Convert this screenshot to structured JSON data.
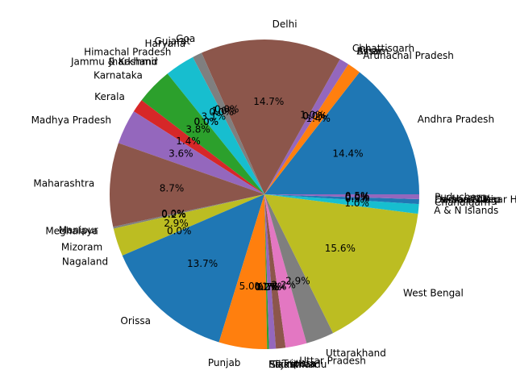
{
  "chart_data": {
    "type": "pie",
    "title": "",
    "start_angle_deg": 0,
    "direction": "counterclockwise",
    "autopct_format": "%.1f%%",
    "palette": [
      "#1f77b4",
      "#ff7f0e",
      "#2ca02c",
      "#d62728",
      "#9467bd",
      "#8c564b",
      "#e377c2",
      "#7f7f7f",
      "#bcbd22",
      "#17becf"
    ],
    "slices": [
      {
        "label": "Andhra Pradesh",
        "value": 14.4
      },
      {
        "label": "Arunachal Pradesh",
        "value": 1.4
      },
      {
        "label": "Assam",
        "value": 0.0
      },
      {
        "label": "Bihar",
        "value": 0.0
      },
      {
        "label": "Chhattisgarh",
        "value": 1.0
      },
      {
        "label": "Delhi",
        "value": 14.7
      },
      {
        "label": "Goa",
        "value": 0.0
      },
      {
        "label": "Gujarat",
        "value": 1.0
      },
      {
        "label": "Haryana",
        "value": 0.0
      },
      {
        "label": "Himachal Pradesh",
        "value": 3.1
      },
      {
        "label": "Jammu & Kashmir",
        "value": 0.0
      },
      {
        "label": "Jharkhand",
        "value": 0.0
      },
      {
        "label": "Karnataka",
        "value": 3.8
      },
      {
        "label": "Kerala",
        "value": 1.4
      },
      {
        "label": "Madhya Pradesh",
        "value": 3.6
      },
      {
        "label": "Maharashtra",
        "value": 8.7
      },
      {
        "label": "Manipur",
        "value": 0.0
      },
      {
        "label": "Meghalaya",
        "value": 0.2
      },
      {
        "label": "Mizoram",
        "value": 2.9
      },
      {
        "label": "Nagaland",
        "value": 0.0
      },
      {
        "label": "Orissa",
        "value": 13.7
      },
      {
        "label": "Punjab",
        "value": 5.0
      },
      {
        "label": "Rajasthan",
        "value": 0.2
      },
      {
        "label": "Sikkim",
        "value": 0.0
      },
      {
        "label": "Tamil Nadu",
        "value": 0.7
      },
      {
        "label": "Tripura",
        "value": 1.0
      },
      {
        "label": "Uttar Pradesh",
        "value": 2.2
      },
      {
        "label": "Uttarakhand",
        "value": 2.9
      },
      {
        "label": "West Bengal",
        "value": 15.6
      },
      {
        "label": "A & N Islands",
        "value": 1.0
      },
      {
        "label": "Chandigarh",
        "value": 0.5
      },
      {
        "label": "Dadra & Nagar Haveli",
        "value": 0.0
      },
      {
        "label": "Daman & Diu",
        "value": 0.0
      },
      {
        "label": "Lakshadweep",
        "value": 0.0
      },
      {
        "label": "Puducherry",
        "value": 0.5
      }
    ]
  }
}
